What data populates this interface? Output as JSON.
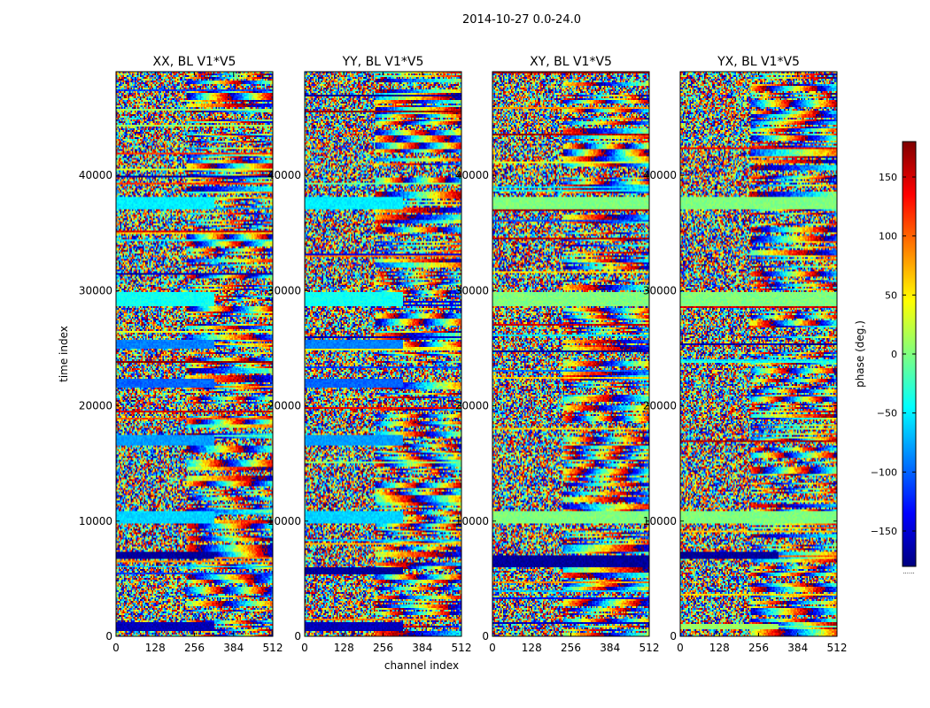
{
  "figure": {
    "suptitle": "2014-10-27 0.0-24.0",
    "xlabel": "channel index",
    "ylabel": "time index",
    "colorbar_label": "phase (deg.)",
    "colorbar_footer": "......"
  },
  "colors": {
    "colormap": [
      "#00007f",
      "#0000ff",
      "#007fff",
      "#00ffff",
      "#7fff7f",
      "#ffff00",
      "#ff7f00",
      "#ff0000",
      "#7f0000"
    ]
  },
  "chart_data": [
    {
      "type": "heatmap",
      "title": "XX, BL V1*V5",
      "xlabel": "channel index",
      "ylabel": "time index",
      "xlim": [
        0,
        512
      ],
      "ylim": [
        0,
        49000
      ],
      "xticks": [
        0,
        128,
        256,
        384,
        512
      ],
      "yticks": [
        0,
        10000,
        20000,
        30000,
        40000
      ],
      "colormap": "jet",
      "clim": [
        -180,
        180
      ],
      "bands": [
        {
          "t0": 500,
          "t1": 1200,
          "c1": 320,
          "phase": -160
        },
        {
          "t0": 6700,
          "t1": 7300,
          "c1": 320,
          "phase": -170
        },
        {
          "t0": 9800,
          "t1": 10900,
          "c1": 320,
          "phase": -60
        },
        {
          "t0": 16600,
          "t1": 17400,
          "c1": 320,
          "phase": -80
        },
        {
          "t0": 21600,
          "t1": 22300,
          "c1": 320,
          "phase": -100
        },
        {
          "t0": 25000,
          "t1": 25800,
          "c1": 320,
          "phase": -90
        },
        {
          "t0": 28700,
          "t1": 29900,
          "c1": 320,
          "phase": -40
        },
        {
          "t0": 37000,
          "t1": 38200,
          "c1": 320,
          "phase": -50
        }
      ]
    },
    {
      "type": "heatmap",
      "title": "YY, BL V1*V5",
      "xlim": [
        0,
        512
      ],
      "ylim": [
        0,
        49000
      ],
      "xticks": [
        0,
        128,
        256,
        384,
        512
      ],
      "yticks": [
        0,
        10000,
        20000,
        30000,
        40000
      ],
      "colormap": "jet",
      "clim": [
        -180,
        180
      ],
      "bands": [
        {
          "t0": 500,
          "t1": 1200,
          "c1": 320,
          "phase": -160
        },
        {
          "t0": 5300,
          "t1": 5900,
          "c1": 320,
          "phase": -170
        },
        {
          "t0": 9800,
          "t1": 10900,
          "c1": 320,
          "phase": -60
        },
        {
          "t0": 16600,
          "t1": 17400,
          "c1": 320,
          "phase": -80
        },
        {
          "t0": 21600,
          "t1": 22300,
          "c1": 320,
          "phase": -100
        },
        {
          "t0": 25000,
          "t1": 25800,
          "c1": 320,
          "phase": -90
        },
        {
          "t0": 28700,
          "t1": 29900,
          "c1": 320,
          "phase": -40
        },
        {
          "t0": 37000,
          "t1": 38200,
          "c1": 320,
          "phase": -50
        }
      ]
    },
    {
      "type": "heatmap",
      "title": "XY, BL V1*V5",
      "xlim": [
        0,
        512
      ],
      "ylim": [
        0,
        49000
      ],
      "xticks": [
        0,
        128,
        256,
        384,
        512
      ],
      "yticks": [
        0,
        10000,
        20000,
        30000,
        40000
      ],
      "colormap": "jet",
      "clim": [
        -180,
        180
      ],
      "bands": [
        {
          "t0": 5900,
          "t1": 7000,
          "c1": 512,
          "phase": -170
        },
        {
          "t0": 9800,
          "t1": 10900,
          "c1": 512,
          "phase": 0
        },
        {
          "t0": 28700,
          "t1": 29900,
          "c1": 512,
          "phase": 0
        },
        {
          "t0": 37000,
          "t1": 38200,
          "c1": 512,
          "phase": 0
        }
      ]
    },
    {
      "type": "heatmap",
      "title": "YX, BL V1*V5",
      "xlim": [
        0,
        512
      ],
      "ylim": [
        0,
        49000
      ],
      "xticks": [
        0,
        128,
        256,
        384,
        512
      ],
      "yticks": [
        0,
        10000,
        20000,
        30000,
        40000
      ],
      "colormap": "jet",
      "clim": [
        -180,
        180
      ],
      "bands": [
        {
          "t0": 600,
          "t1": 1100,
          "c1": 320,
          "phase": 10
        },
        {
          "t0": 6700,
          "t1": 7300,
          "c1": 320,
          "phase": -170
        },
        {
          "t0": 9800,
          "t1": 10900,
          "c1": 512,
          "phase": 0
        },
        {
          "t0": 28700,
          "t1": 29900,
          "c1": 512,
          "phase": 0
        },
        {
          "t0": 37000,
          "t1": 38200,
          "c1": 512,
          "phase": 0
        }
      ]
    }
  ],
  "colorbar": {
    "range": [
      -180,
      180
    ],
    "ticks": [
      -150,
      -100,
      -50,
      0,
      50,
      100,
      150
    ],
    "tick_labels": [
      "−150",
      "−100",
      "−50",
      "0",
      "50",
      "100",
      "150"
    ]
  }
}
